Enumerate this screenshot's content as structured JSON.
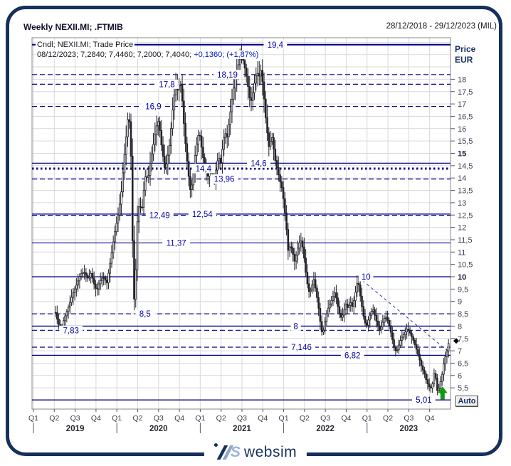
{
  "window": {
    "title": "Weekly NEXII.MI; .FTMIB",
    "date_range": "28/12/2018 - 29/12/2023 (MIL)"
  },
  "legend": {
    "line1": "Cndl; NEXII.MI; Trade Price",
    "line2_black": "08/12/2023; 7,2840; 7,4460; 7,2000; 7,4040;",
    "line2_blue": "+0,1360; (+1,87%)"
  },
  "axis": {
    "price_title_line1": "Price",
    "price_title_line2": "EUR",
    "auto_button": "Auto"
  },
  "watermark": {
    "wordmark": "websim",
    "monogram_s": "S"
  },
  "colors": {
    "level_line": "#00008b",
    "level_label": "#0000a8",
    "trendline": "#3333b3",
    "grid": "#d9d9de",
    "frame": "#8a8a8a",
    "candle": "#22222a",
    "axis_text": "#3f3f52",
    "axis_text_bold": "#20203a",
    "green_arrow": "#0f9b0f",
    "marker": "#000000"
  },
  "chart_data": {
    "type": "candlestick",
    "interval": "weekly",
    "instrument": "NEXII.MI",
    "index": ".FTMIB",
    "period": "28/12/2018 - 29/12/2023",
    "unit": "EUR",
    "last_bar": {
      "date": "08/12/2023",
      "open": "7,2840",
      "high": "7,4460",
      "low": "7,2000",
      "close": "7,4040",
      "change": "+0,1360",
      "change_pct": "(+1,87%)",
      "close_value": 7.404
    },
    "y_axis": {
      "min": 5.5,
      "max": 18,
      "step": 0.5,
      "bold_ticks": [
        15,
        10
      ]
    },
    "x_axis": {
      "quarter_labels": [
        "Q1",
        "Q2",
        "Q3",
        "Q4"
      ],
      "years": [
        "2019",
        "2020",
        "2021",
        "2022",
        "2023"
      ]
    },
    "levels": [
      {
        "price": 19.4,
        "label": "19,4",
        "style": "solid",
        "weight": 2.2,
        "label_t": 11.6
      },
      {
        "price": 18.19,
        "label": "18,19",
        "style": "dashed",
        "label_t": 9.3
      },
      {
        "price": 17.8,
        "label": "17,8",
        "style": "dashed",
        "label_t": 6.4
      },
      {
        "price": 16.9,
        "label": "16,9",
        "style": "dashed",
        "label_t": 5.75
      },
      {
        "price": 14.6,
        "label": "14,6",
        "style": "solid",
        "label_t": 10.8
      },
      {
        "price": 14.38,
        "label": "14,4",
        "style": "dotted",
        "label_t": 8.15
      },
      {
        "price": 13.96,
        "label": "13,96",
        "style": "dashed",
        "label_t": 9.15
      },
      {
        "price": 12.54,
        "label": "12,54",
        "style": "solid",
        "label_t": 8.1
      },
      {
        "price": 12.49,
        "label": "12,49",
        "style": "dashed",
        "label_t": 6.05
      },
      {
        "price": 11.37,
        "label": "11,37",
        "style": "solid",
        "label_t": 6.85
      },
      {
        "price": 10,
        "label": "10",
        "style": "solid",
        "label_t": 15.95
      },
      {
        "price": 8.5,
        "label": "8,5",
        "style": "dashed",
        "label_t": 5.35
      },
      {
        "price": 8,
        "label": "8",
        "style": "solid",
        "label_t": 12.58
      },
      {
        "price": 7.83,
        "label": "7,83",
        "style": "dashed",
        "label_t": 1.8
      },
      {
        "price": 7.146,
        "label": "7,146",
        "style": "dashed",
        "label_t": 12.85
      },
      {
        "price": 6.82,
        "label": "6,82",
        "style": "solid",
        "label_t": 15.3
      },
      {
        "price": 5.01,
        "label": "5,01",
        "style": "solid",
        "label_t": 18.72
      }
    ],
    "trendline": {
      "t1": 15.56,
      "p1": 10.0,
      "t2": 19.93,
      "p2": 6.95,
      "style": "dashed"
    },
    "breakout_arrow": {
      "t": 19.62,
      "price_top": 5.55
    },
    "price_path_anchors": [
      [
        1.06,
        8.55
      ],
      [
        1.19,
        8.1
      ],
      [
        1.33,
        7.85
      ],
      [
        1.47,
        8.3
      ],
      [
        1.67,
        8.75
      ],
      [
        1.88,
        9.3
      ],
      [
        2.08,
        9.7
      ],
      [
        2.25,
        10.1
      ],
      [
        2.42,
        10.2
      ],
      [
        2.63,
        9.9
      ],
      [
        2.76,
        10.15
      ],
      [
        2.94,
        9.6
      ],
      [
        3.04,
        9.45
      ],
      [
        3.17,
        9.8
      ],
      [
        3.34,
        10.0
      ],
      [
        3.52,
        9.75
      ],
      [
        3.65,
        10.4
      ],
      [
        3.79,
        11.2
      ],
      [
        3.92,
        11.9
      ],
      [
        4.06,
        12.5
      ],
      [
        4.2,
        13.3
      ],
      [
        4.33,
        14.6
      ],
      [
        4.47,
        15.9
      ],
      [
        4.57,
        16.8
      ],
      [
        4.68,
        14.8
      ],
      [
        4.74,
        12.0
      ],
      [
        4.81,
        8.9
      ],
      [
        4.88,
        9.6
      ],
      [
        4.98,
        12.2
      ],
      [
        5.08,
        13.0
      ],
      [
        5.19,
        12.6
      ],
      [
        5.29,
        13.5
      ],
      [
        5.39,
        14.2
      ],
      [
        5.49,
        13.9
      ],
      [
        5.6,
        14.6
      ],
      [
        5.7,
        15.1
      ],
      [
        5.8,
        15.6
      ],
      [
        5.9,
        16.1
      ],
      [
        6.01,
        16.35
      ],
      [
        6.11,
        15.5
      ],
      [
        6.21,
        14.9
      ],
      [
        6.31,
        14.3
      ],
      [
        6.42,
        14.8
      ],
      [
        6.52,
        15.3
      ],
      [
        6.62,
        16.2
      ],
      [
        6.72,
        17.2
      ],
      [
        6.83,
        17.75
      ],
      [
        6.93,
        17.5
      ],
      [
        7.03,
        18.0
      ],
      [
        7.13,
        17.2
      ],
      [
        7.24,
        15.9
      ],
      [
        7.34,
        14.9
      ],
      [
        7.44,
        14.1
      ],
      [
        7.54,
        13.4
      ],
      [
        7.65,
        14.0
      ],
      [
        7.75,
        14.9
      ],
      [
        7.85,
        15.5
      ],
      [
        7.95,
        15.9
      ],
      [
        8.05,
        15.3
      ],
      [
        8.16,
        14.7
      ],
      [
        8.26,
        14.3
      ],
      [
        8.36,
        14.05
      ],
      [
        8.46,
        14.3
      ],
      [
        8.57,
        14.1
      ],
      [
        8.67,
        13.95
      ],
      [
        8.77,
        14.4
      ],
      [
        8.87,
        14.9
      ],
      [
        8.98,
        14.6
      ],
      [
        9.08,
        15.3
      ],
      [
        9.18,
        15.9
      ],
      [
        9.28,
        15.6
      ],
      [
        9.39,
        16.3
      ],
      [
        9.49,
        17.0
      ],
      [
        9.59,
        17.6
      ],
      [
        9.69,
        18.1
      ],
      [
        9.8,
        18.5
      ],
      [
        9.9,
        18.8
      ],
      [
        10.0,
        19.0
      ],
      [
        10.1,
        18.6
      ],
      [
        10.2,
        18.2
      ],
      [
        10.31,
        17.6
      ],
      [
        10.41,
        17.0
      ],
      [
        10.51,
        17.4
      ],
      [
        10.61,
        17.9
      ],
      [
        10.72,
        18.3
      ],
      [
        10.82,
        18.1
      ],
      [
        10.92,
        18.4
      ],
      [
        11.02,
        17.6
      ],
      [
        11.13,
        16.5
      ],
      [
        11.23,
        15.7
      ],
      [
        11.33,
        15.0
      ],
      [
        11.4,
        15.9
      ],
      [
        11.5,
        15.3
      ],
      [
        11.6,
        14.7
      ],
      [
        11.71,
        14.3
      ],
      [
        11.81,
        13.9
      ],
      [
        11.91,
        13.6
      ],
      [
        12.01,
        13.0
      ],
      [
        12.12,
        12.1
      ],
      [
        12.22,
        11.0
      ],
      [
        12.32,
        11.3
      ],
      [
        12.42,
        11.0
      ],
      [
        12.53,
        10.6
      ],
      [
        12.63,
        11.0
      ],
      [
        12.73,
        11.35
      ],
      [
        12.83,
        11.45
      ],
      [
        12.94,
        11.1
      ],
      [
        13.04,
        10.3
      ],
      [
        13.14,
        9.7
      ],
      [
        13.24,
        9.3
      ],
      [
        13.34,
        9.6
      ],
      [
        13.45,
        9.9
      ],
      [
        13.55,
        9.4
      ],
      [
        13.65,
        8.9
      ],
      [
        13.75,
        8.2
      ],
      [
        13.86,
        7.6
      ],
      [
        13.96,
        8.1
      ],
      [
        14.06,
        8.5
      ],
      [
        14.16,
        8.8
      ],
      [
        14.27,
        9.0
      ],
      [
        14.37,
        9.2
      ],
      [
        14.47,
        9.4
      ],
      [
        14.57,
        8.9
      ],
      [
        14.68,
        8.5
      ],
      [
        14.78,
        8.3
      ],
      [
        14.88,
        8.6
      ],
      [
        14.98,
        8.9
      ],
      [
        15.09,
        8.7
      ],
      [
        15.19,
        9.0
      ],
      [
        15.29,
        8.8
      ],
      [
        15.39,
        9.1
      ],
      [
        15.49,
        9.6
      ],
      [
        15.56,
        9.9
      ],
      [
        15.66,
        9.3
      ],
      [
        15.77,
        8.7
      ],
      [
        15.87,
        8.2
      ],
      [
        15.97,
        8.0
      ],
      [
        16.08,
        8.3
      ],
      [
        16.18,
        8.55
      ],
      [
        16.28,
        8.7
      ],
      [
        16.38,
        8.4
      ],
      [
        16.48,
        8.1
      ],
      [
        16.59,
        7.85
      ],
      [
        16.69,
        8.0
      ],
      [
        16.79,
        8.25
      ],
      [
        16.89,
        8.4
      ],
      [
        17.0,
        8.2
      ],
      [
        17.1,
        7.9
      ],
      [
        17.2,
        7.5
      ],
      [
        17.3,
        7.1
      ],
      [
        17.41,
        6.95
      ],
      [
        17.51,
        7.2
      ],
      [
        17.61,
        7.45
      ],
      [
        17.71,
        7.6
      ],
      [
        17.82,
        7.75
      ],
      [
        17.92,
        7.9
      ],
      [
        18.02,
        7.8
      ],
      [
        18.12,
        7.6
      ],
      [
        18.23,
        7.4
      ],
      [
        18.33,
        7.15
      ],
      [
        18.43,
        6.9
      ],
      [
        18.53,
        6.6
      ],
      [
        18.63,
        6.3
      ],
      [
        18.74,
        6.1
      ],
      [
        18.84,
        5.8
      ],
      [
        18.94,
        5.6
      ],
      [
        19.04,
        5.45
      ],
      [
        19.15,
        5.7
      ],
      [
        19.25,
        6.3
      ],
      [
        19.32,
        5.6
      ],
      [
        19.39,
        5.3
      ],
      [
        19.45,
        5.5
      ],
      [
        19.52,
        5.75
      ],
      [
        19.59,
        6.0
      ],
      [
        19.66,
        6.4
      ],
      [
        19.73,
        6.7
      ],
      [
        19.8,
        6.9
      ],
      [
        19.86,
        7.1
      ],
      [
        19.93,
        7.4
      ]
    ]
  }
}
